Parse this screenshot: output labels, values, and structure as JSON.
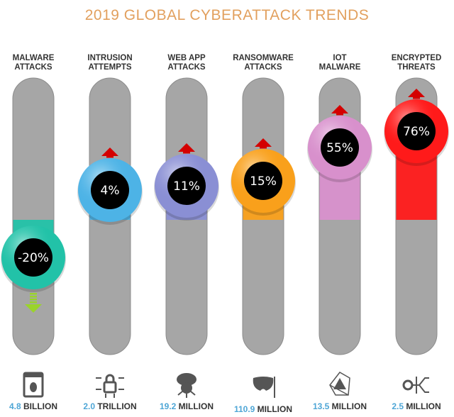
{
  "chart_data": {
    "type": "bar",
    "title": "2019 GLOBAL CYBERATTACK TRENDS",
    "categories": [
      {
        "line1": "MALWARE",
        "line2": "ATTACKS",
        "icon": "bug-window-icon"
      },
      {
        "line1": "INTRUSION",
        "line2": "ATTEMPTS",
        "icon": "circuit-lock-icon"
      },
      {
        "line1": "WEB APP",
        "line2": "ATTACKS",
        "icon": "cloud-skull-icon"
      },
      {
        "line1": "RANSOMWARE",
        "line2": "ATTACKS",
        "icon": "mask-icon"
      },
      {
        "line1": "IOT",
        "line2": "MALWARE",
        "icon": "network-warning-icon"
      },
      {
        "line1": "ENCRYPTED",
        "line2": "THREATS",
        "icon": "circuit-key-icon"
      }
    ],
    "values": [
      -20,
      4,
      11,
      15,
      55,
      76
    ],
    "value_labels": [
      "-20%",
      "4%",
      "11%",
      "15%",
      "55%",
      "76%"
    ],
    "volumes": [
      {
        "number": "4.8",
        "unit": "BILLION"
      },
      {
        "number": "2.0",
        "unit": "TRILLION"
      },
      {
        "number": "19.2",
        "unit": "MILLION"
      },
      {
        "number": "110.9",
        "unit": "MILLION"
      },
      {
        "number": "13.5",
        "unit": "MILLION"
      },
      {
        "number": "2.5",
        "unit": "MILLION"
      }
    ],
    "colors": [
      "#22c2a8",
      "#4db3e6",
      "#8a8fd4",
      "#f9a01b",
      "#d890cc",
      "#ff1a1a"
    ],
    "arrow_colors": {
      "up": "#d40000",
      "down": "#9ad42a"
    },
    "track_color": "#a6a6a6"
  }
}
